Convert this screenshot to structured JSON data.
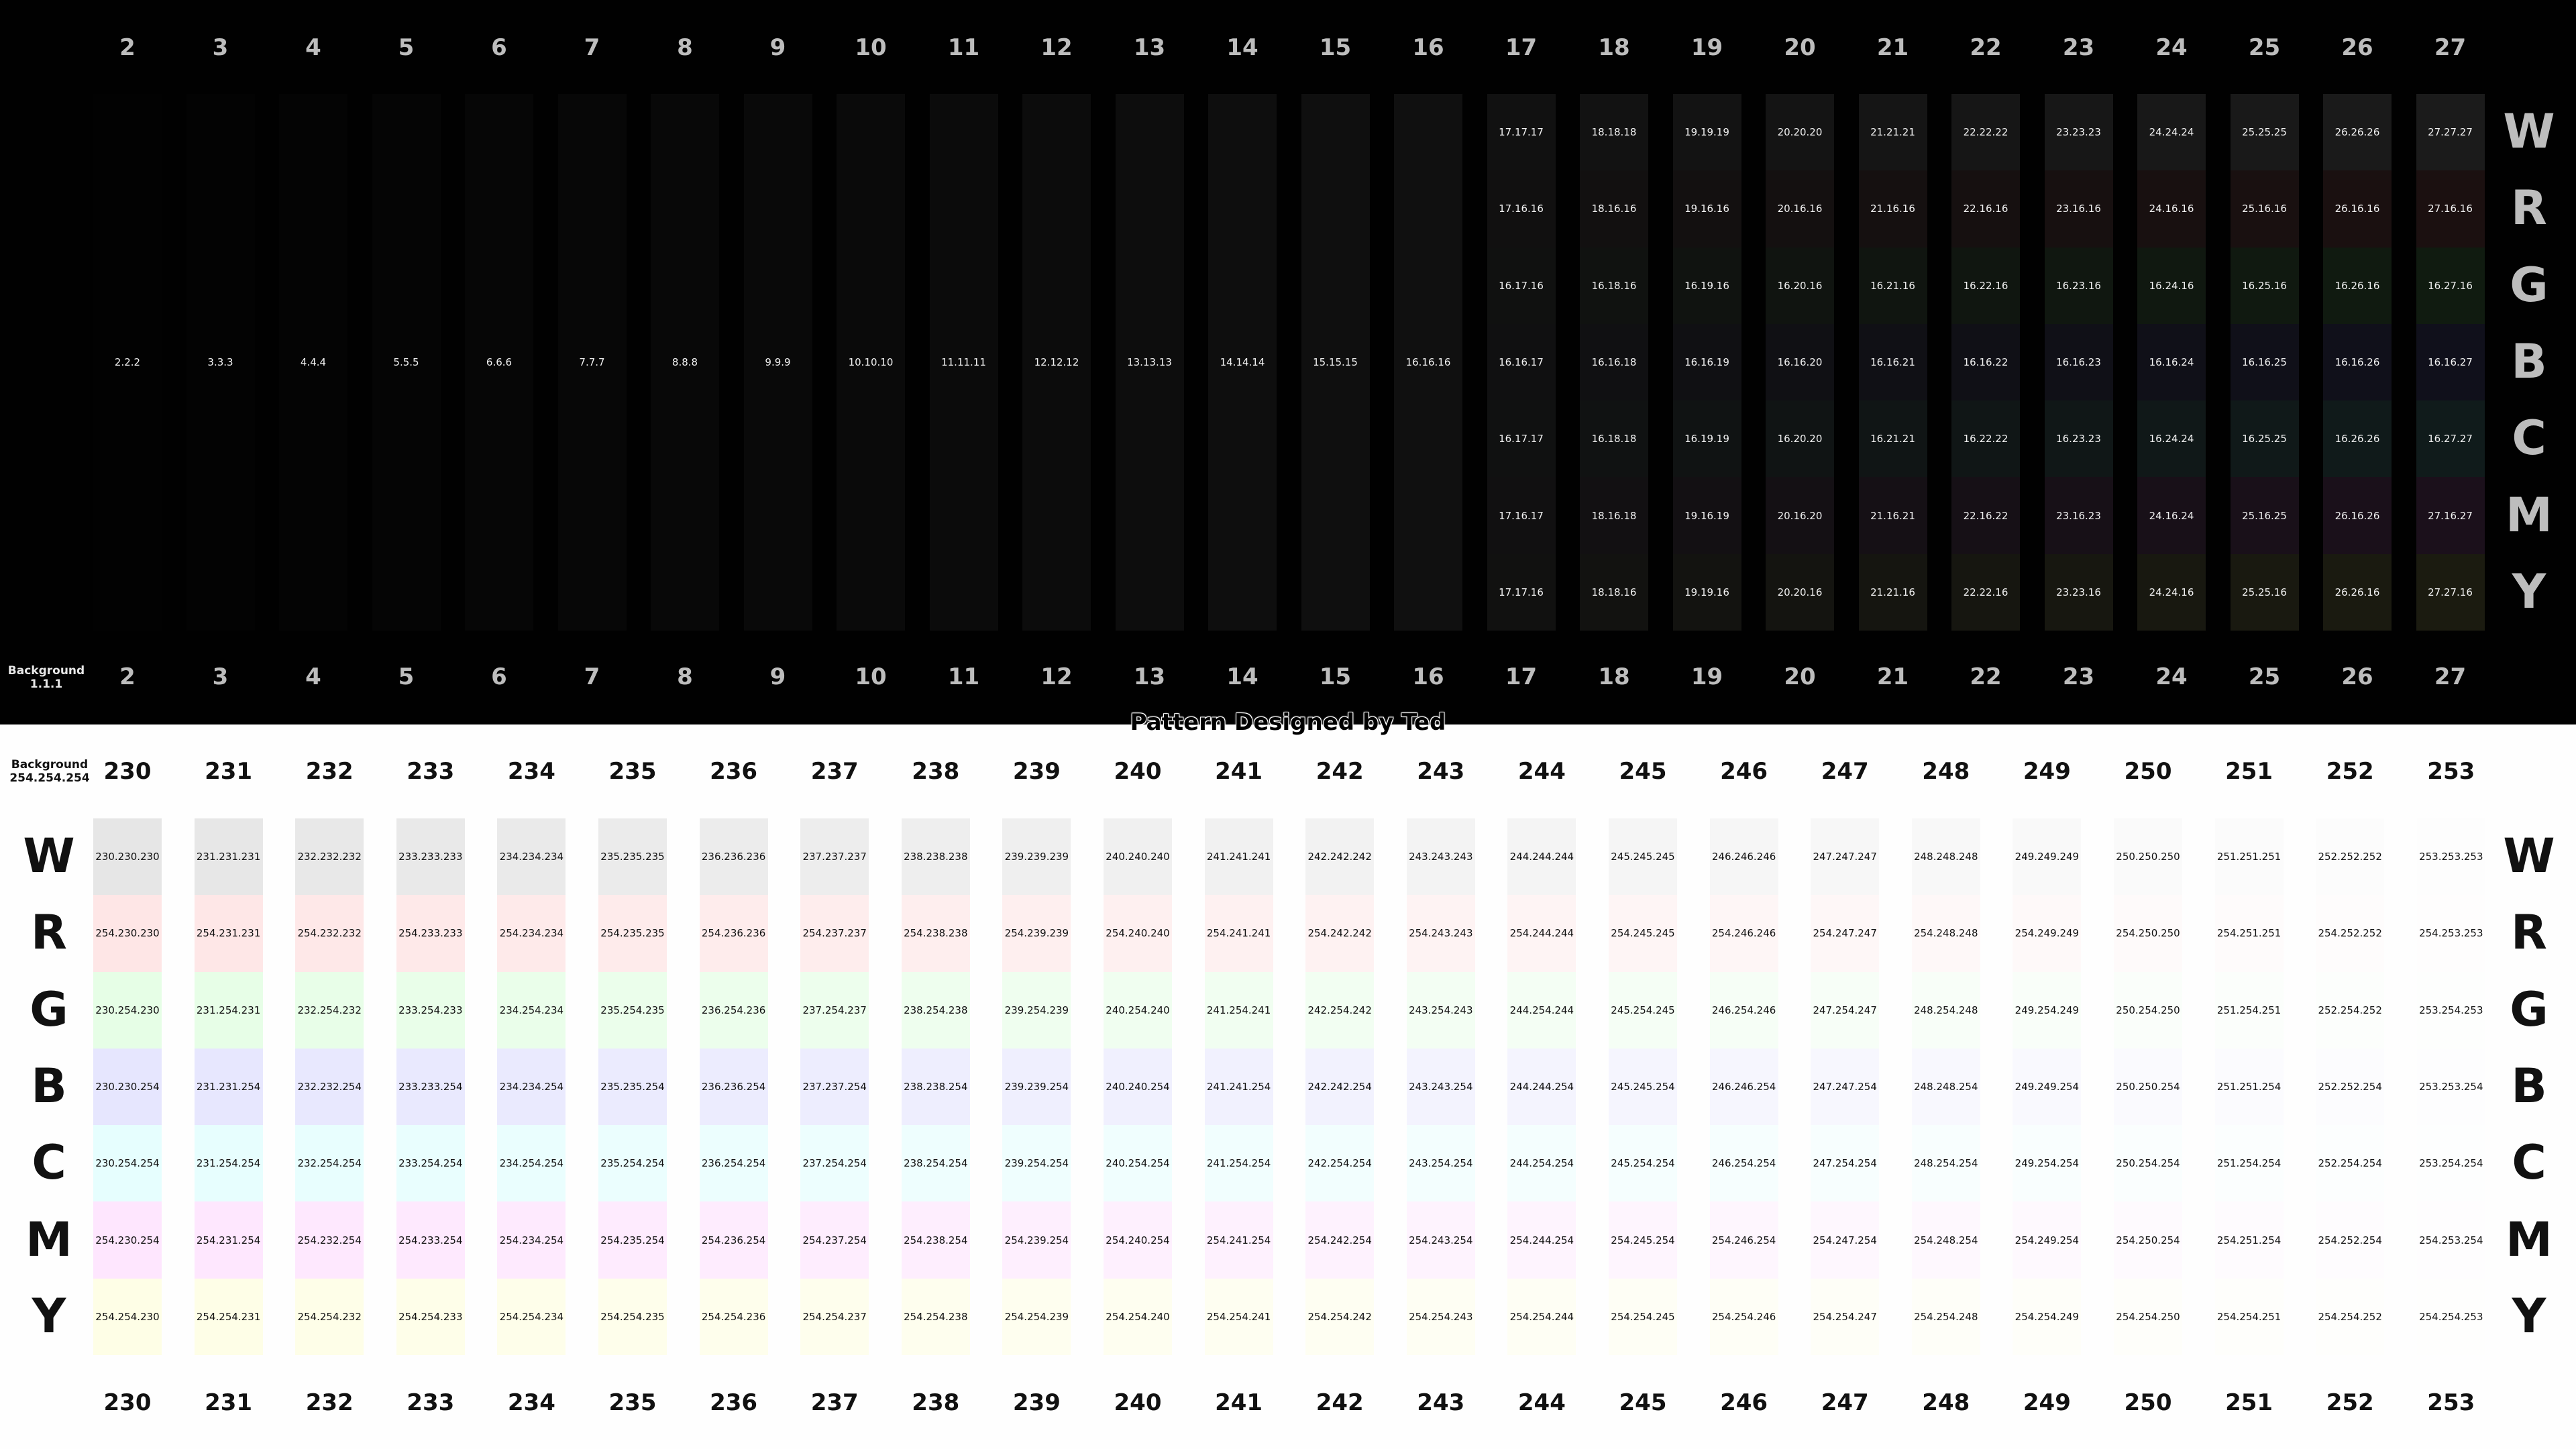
{
  "watermark": "Pattern Designed by Ted",
  "dark": {
    "background_label": "Background",
    "background_value": "1.1.1",
    "plain_levels": [
      2,
      3,
      4,
      5,
      6,
      7,
      8,
      9,
      10,
      11,
      12,
      13,
      14,
      15,
      16
    ],
    "tinted_levels": [
      17,
      18,
      19,
      20,
      21,
      22,
      23,
      24,
      25,
      26,
      27
    ],
    "row_letters": [
      "W",
      "R",
      "G",
      "B",
      "C",
      "M",
      "Y"
    ],
    "base": 16
  },
  "light": {
    "background_label": "Background",
    "background_value": "254.254.254",
    "levels": [
      230,
      231,
      232,
      233,
      234,
      235,
      236,
      237,
      238,
      239,
      240,
      241,
      242,
      243,
      244,
      245,
      246,
      247,
      248,
      249,
      250,
      251,
      252,
      253
    ],
    "row_letters": [
      "W",
      "R",
      "G",
      "B",
      "C",
      "M",
      "Y"
    ],
    "base": 254
  },
  "colors": {
    "dark_background": "#010101",
    "light_background": "#fefefe",
    "dark_numbers": "#bdbdbd",
    "side_letters_dark": "#bdbdbd",
    "light_numbers": "#111111"
  }
}
